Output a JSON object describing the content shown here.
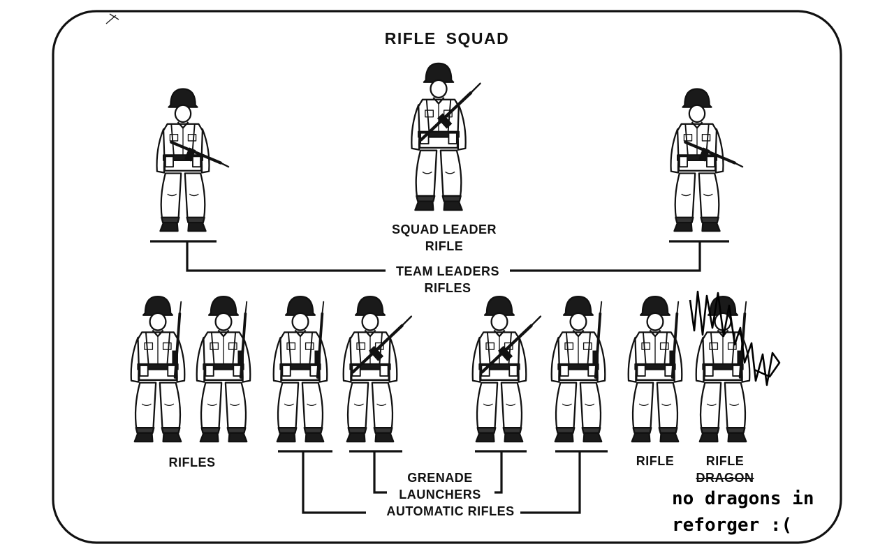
{
  "diagram": {
    "title": "RIFLE  SQUAD",
    "squad_leader": {
      "line1": "SQUAD LEADER",
      "line2": "RIFLE"
    },
    "team_leaders": {
      "line1": "TEAM LEADERS",
      "line2": "RIFLES"
    },
    "rifles_group": "RIFLES",
    "grenade_launchers": {
      "line1": "GRENADE",
      "line2": "LAUNCHERS"
    },
    "automatic_rifles": "AUTOMATIC RIFLES",
    "rifle_single": "RIFLE",
    "rifle_dragon": {
      "line1": "RIFLE",
      "line2": "DRAGON"
    },
    "handwritten_note": {
      "line1": "no dragons in",
      "line2": "reforger :("
    },
    "colors": {
      "ink": "#111111",
      "paper": "#ffffff"
    },
    "icons": [
      "soldier-figure-icon",
      "rifle-icon",
      "scribble-mark"
    ]
  }
}
